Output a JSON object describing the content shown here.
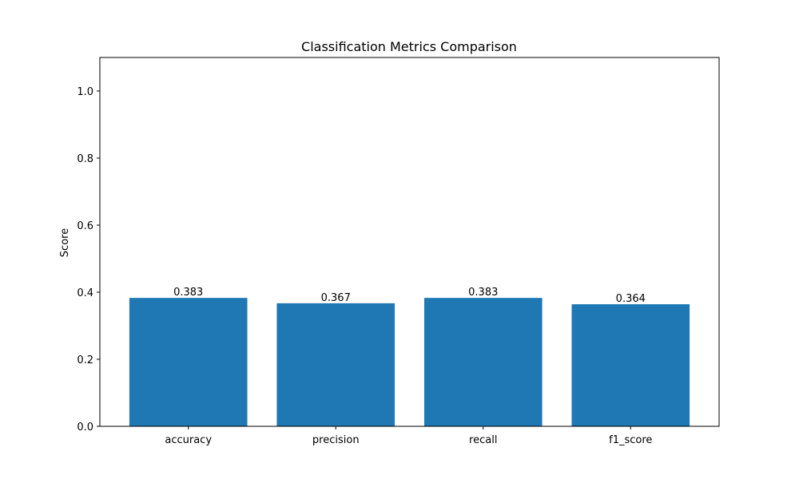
{
  "chart_data": {
    "type": "bar",
    "title": "Classification Metrics Comparison",
    "xlabel": "",
    "ylabel": "Score",
    "categories": [
      "accuracy",
      "precision",
      "recall",
      "f1_score"
    ],
    "values": [
      0.383,
      0.367,
      0.383,
      0.364
    ],
    "value_labels": [
      "0.383",
      "0.367",
      "0.383",
      "0.364"
    ],
    "ylim": [
      0,
      1.1
    ],
    "yticks": [
      0.0,
      0.2,
      0.4,
      0.6,
      0.8,
      1.0
    ],
    "ytick_labels": [
      "0.0",
      "0.2",
      "0.4",
      "0.6",
      "0.8",
      "1.0"
    ],
    "grid": false,
    "legend": "none",
    "bar_color": "#1f77b4"
  }
}
